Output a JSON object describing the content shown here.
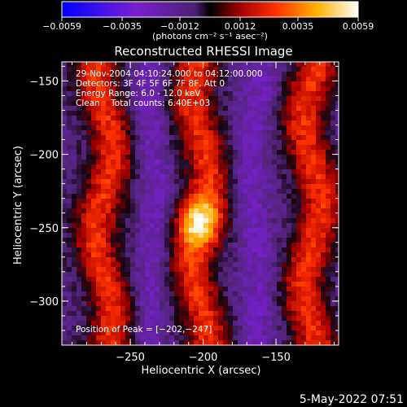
{
  "chart_data": {
    "type": "heatmap",
    "title": "Reconstructed RHESSI Image",
    "xlabel": "Heliocentric X (arcsec)",
    "ylabel": "Heliocentric Y (arcsec)",
    "xlim": [
      -297,
      -107
    ],
    "ylim": [
      -330,
      -137
    ],
    "x_ticks": [
      -250,
      -200,
      -150
    ],
    "x_tick_labels": [
      "−250",
      "−200",
      "−150"
    ],
    "y_ticks": [
      -150,
      -200,
      -250,
      -300
    ],
    "y_tick_labels": [
      "−150",
      "−200",
      "−250",
      "−300"
    ],
    "colorbar": {
      "range": [
        -0.0059,
        0.0059
      ],
      "ticks": [
        -0.0059,
        -0.0035,
        -0.0012,
        0.0012,
        0.0035,
        0.0059
      ],
      "tick_labels": [
        "−0.0059",
        "−0.0035",
        "−0.0012",
        "0.0012",
        "0.0035",
        "0.0059"
      ],
      "unit_label": "(photons cm⁻² s⁻¹ asec⁻²)",
      "colors": [
        "#0000ff",
        "#7a1fd0",
        "#5a2a8a",
        "#000000",
        "#b00000",
        "#ff4000",
        "#ffb000",
        "#ffffff"
      ]
    },
    "annotations": [
      "29-Nov-2004 04:10:24.000 to 04:12:00.000",
      "Detectors: 3F 4F 5F 6F 7F 8F, Att 0",
      "Energy Range: 6.0 - 12.0 keV",
      "Clean    Total counts: 6.40E+03"
    ],
    "peak_label": "Position of Peak = [−202,−247]",
    "peak": [
      -202,
      -247
    ],
    "bright_columns_x": [
      -268,
      -202,
      -125
    ],
    "dark_columns_x": [
      -235,
      -165
    ]
  },
  "footer": {
    "date": "5-May-2022 07:51"
  }
}
